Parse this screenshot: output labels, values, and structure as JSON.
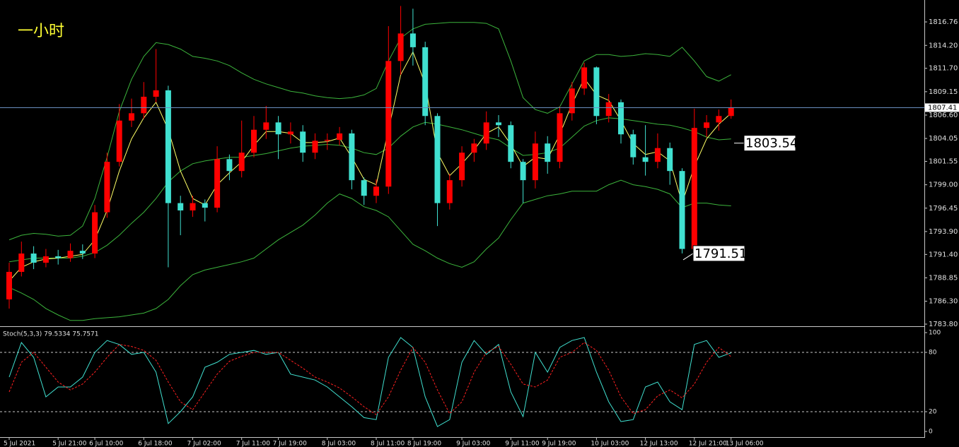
{
  "chart_data": [
    {
      "type": "candlestick",
      "title": "一小时",
      "categories": [
        "5 Jul 2021",
        null,
        null,
        null,
        "5 Jul 21:00",
        null,
        null,
        "6 Jul 10:00",
        null,
        null,
        null,
        "6 Jul 18:00",
        null,
        null,
        null,
        "7 Jul 02:00",
        null,
        null,
        null,
        "7 Jul 11:00",
        null,
        null,
        "7 Jul 19:00",
        null,
        null,
        null,
        "8 Jul 03:00",
        null,
        null,
        null,
        "8 Jul 11:00",
        null,
        null,
        "8 Jul 19:00",
        null,
        null,
        null,
        "9 Jul 03:00",
        null,
        null,
        null,
        "9 Jul 11:00",
        null,
        null,
        "9 Jul 19:00",
        null,
        null,
        null,
        "10 Jul 03:00",
        null,
        null,
        null,
        "12 Jul 13:00",
        null,
        null,
        null,
        "12 Jul 21:00",
        null,
        null,
        "13 Jul 06:00"
      ],
      "open": [
        1786.5,
        1789.5,
        1791.5,
        1790.5,
        1791.2,
        1791.0,
        1791.8,
        1791.5,
        1796.0,
        1801.5,
        1806.0,
        1806.8,
        1808.6,
        1809.3,
        1797.0,
        1796.2,
        1797.0,
        1796.5,
        1801.8,
        1800.5,
        1802.5,
        1805.0,
        1805.8,
        1804.5,
        1804.8,
        1802.5,
        1803.8,
        1803.9,
        1804.6,
        1799.5,
        1797.8,
        1798.8,
        1812.5,
        1815.5,
        1814.0,
        1806.5,
        1797.0,
        1799.5,
        1802.5,
        1803.5,
        1805.8,
        1805.5,
        1801.5,
        1799.5,
        1803.5,
        1801.5,
        1806.8,
        1809.5,
        1811.8,
        1806.5,
        1808.0,
        1804.5,
        1802.0,
        1801.5,
        1803.0,
        1800.5,
        1792.0,
        1805.2,
        1805.8,
        1806.5
      ],
      "high": [
        1790.5,
        1792.8,
        1792.3,
        1792.0,
        1791.9,
        1792.6,
        1792.5,
        1796.8,
        1802.5,
        1807.8,
        1808.4,
        1810.2,
        1813.8,
        1809.8,
        1797.8,
        1797.8,
        1797.4,
        1803.2,
        1802.3,
        1806.0,
        1806.5,
        1807.6,
        1806.5,
        1805.8,
        1805.5,
        1804.6,
        1804.6,
        1805.3,
        1805.0,
        1799.8,
        1799.6,
        1816.3,
        1818.5,
        1818.2,
        1814.6,
        1806.8,
        1800.2,
        1803.2,
        1804.0,
        1807.0,
        1806.6,
        1805.9,
        1801.8,
        1804.8,
        1804.3,
        1807.5,
        1810.2,
        1812.3,
        1811.9,
        1808.9,
        1808.3,
        1805.0,
        1805.5,
        1804.6,
        1803.6,
        1800.8,
        1807.3,
        1806.6,
        1807.2,
        1808.3
      ],
      "low": [
        1785.5,
        1789.0,
        1789.8,
        1790.0,
        1790.3,
        1790.6,
        1790.9,
        1791.0,
        1795.4,
        1801.0,
        1805.3,
        1806.2,
        1808.0,
        1790.0,
        1793.5,
        1795.5,
        1795.0,
        1796.0,
        1799.5,
        1799.8,
        1802.0,
        1804.0,
        1801.8,
        1803.5,
        1801.5,
        1801.8,
        1802.8,
        1803.3,
        1798.5,
        1796.8,
        1797.0,
        1798.0,
        1811.0,
        1812.0,
        1805.5,
        1794.5,
        1796.3,
        1798.8,
        1801.5,
        1802.8,
        1804.2,
        1800.8,
        1797.0,
        1798.6,
        1800.2,
        1800.8,
        1806.0,
        1808.8,
        1805.6,
        1805.8,
        1803.5,
        1801.2,
        1800.0,
        1800.8,
        1799.0,
        1791.51,
        1791.8,
        1804.2,
        1804.9,
        1806.2
      ],
      "close": [
        1789.5,
        1791.5,
        1790.5,
        1791.2,
        1791.0,
        1791.8,
        1791.5,
        1796.0,
        1801.5,
        1806.0,
        1806.8,
        1808.6,
        1809.3,
        1797.0,
        1796.2,
        1797.0,
        1796.5,
        1801.8,
        1800.5,
        1802.5,
        1805.0,
        1805.8,
        1804.5,
        1804.8,
        1802.5,
        1803.8,
        1803.9,
        1804.6,
        1799.5,
        1797.8,
        1798.8,
        1812.5,
        1815.5,
        1814.0,
        1806.5,
        1797.0,
        1799.5,
        1802.5,
        1803.5,
        1805.8,
        1805.5,
        1801.5,
        1799.5,
        1803.5,
        1801.5,
        1806.8,
        1809.5,
        1811.8,
        1806.5,
        1808.0,
        1804.5,
        1802.0,
        1801.5,
        1803.0,
        1800.5,
        1792.0,
        1805.2,
        1805.8,
        1806.5,
        1807.4
      ],
      "up_color": "#ff0000",
      "down_color": "#40e0d0",
      "lines": [
        {
          "color": "#3cb43c",
          "values": [
            1793.0,
            1793.5,
            1793.7,
            1793.6,
            1793.4,
            1793.5,
            1794.5,
            1797.5,
            1802.0,
            1807.0,
            1810.5,
            1813.0,
            1814.5,
            1814.3,
            1813.8,
            1813.0,
            1812.8,
            1812.5,
            1812.0,
            1811.2,
            1810.5,
            1810.0,
            1809.6,
            1809.2,
            1809.0,
            1808.7,
            1808.5,
            1808.4,
            1808.5,
            1808.8,
            1809.5,
            1812.5,
            1815.0,
            1816.0,
            1816.5,
            1816.6,
            1816.7,
            1816.7,
            1816.7,
            1816.6,
            1816.0,
            1812.5,
            1808.5,
            1807.2,
            1806.8,
            1807.5,
            1810.0,
            1812.5,
            1813.2,
            1813.2,
            1813.0,
            1813.1,
            1813.3,
            1813.2,
            1813.0,
            1814.0,
            1812.5,
            1810.8,
            1810.3,
            1811.0
          ]
        },
        {
          "color": "#3cb43c",
          "values": [
            1790.6,
            1790.8,
            1791.0,
            1791.0,
            1791.0,
            1791.0,
            1791.2,
            1791.6,
            1792.4,
            1793.5,
            1794.8,
            1796.0,
            1797.5,
            1799.3,
            1800.5,
            1801.3,
            1801.6,
            1801.8,
            1802.0,
            1802.0,
            1802.2,
            1802.4,
            1802.7,
            1803.0,
            1803.2,
            1803.3,
            1803.4,
            1803.3,
            1803.0,
            1802.5,
            1802.3,
            1803.0,
            1804.3,
            1805.3,
            1805.8,
            1805.6,
            1805.3,
            1805.0,
            1804.6,
            1804.2,
            1803.9,
            1803.0,
            1802.2,
            1802.3,
            1802.5,
            1803.0,
            1804.2,
            1805.4,
            1806.0,
            1806.3,
            1806.2,
            1806.0,
            1805.8,
            1805.6,
            1805.5,
            1805.2,
            1804.8,
            1804.2,
            1803.9,
            1804.0
          ]
        },
        {
          "color": "#3cb43c",
          "values": [
            1787.8,
            1787.2,
            1786.5,
            1785.5,
            1784.8,
            1784.2,
            1784.2,
            1784.4,
            1784.5,
            1784.6,
            1784.8,
            1785.0,
            1785.5,
            1786.5,
            1788.0,
            1789.2,
            1789.7,
            1790.0,
            1790.3,
            1790.6,
            1791.0,
            1792.0,
            1793.0,
            1793.8,
            1794.6,
            1795.7,
            1797.0,
            1798.0,
            1797.5,
            1796.6,
            1796.2,
            1795.5,
            1794.0,
            1792.5,
            1791.8,
            1791.0,
            1790.4,
            1790.0,
            1790.6,
            1792.0,
            1793.2,
            1795.2,
            1797.0,
            1797.4,
            1797.8,
            1798.0,
            1798.3,
            1798.3,
            1798.3,
            1799.0,
            1799.5,
            1799.0,
            1798.8,
            1798.5,
            1798.0,
            1796.5,
            1797.0,
            1797.0,
            1796.8,
            1796.7
          ]
        },
        {
          "color": "#ffff66",
          "values": [
            1788.5,
            1790.0,
            1790.6,
            1790.9,
            1791.0,
            1791.2,
            1791.4,
            1793.0,
            1796.2,
            1800.5,
            1804.0,
            1806.3,
            1808.0,
            1805.0,
            1800.5,
            1797.5,
            1796.8,
            1799.0,
            1800.3,
            1801.5,
            1803.3,
            1804.8,
            1804.8,
            1804.6,
            1803.6,
            1803.6,
            1803.7,
            1804.1,
            1802.0,
            1799.6,
            1799.0,
            1805.0,
            1811.0,
            1813.5,
            1810.0,
            1802.5,
            1800.0,
            1801.3,
            1802.8,
            1804.6,
            1805.3,
            1803.4,
            1801.0,
            1802.0,
            1801.8,
            1804.5,
            1807.8,
            1810.6,
            1808.8,
            1808.2,
            1806.0,
            1803.5,
            1802.3,
            1802.6,
            1801.6,
            1797.0,
            1801.0,
            1804.0,
            1805.6,
            1806.8
          ]
        }
      ],
      "ylim": [
        1783.57,
        1819.15
      ],
      "yticks": [
        {
          "value": 1816.76,
          "label": "1816.76"
        },
        {
          "value": 1814.2,
          "label": "1814.20"
        },
        {
          "value": 1811.7,
          "label": "1811.70"
        },
        {
          "value": 1809.15,
          "label": "1809.15"
        },
        {
          "value": 1806.6,
          "label": "1806.60"
        },
        {
          "value": 1804.05,
          "label": "1804.05"
        },
        {
          "value": 1801.55,
          "label": "1801.55"
        },
        {
          "value": 1799.0,
          "label": "1799.00"
        },
        {
          "value": 1796.45,
          "label": "1796.45"
        },
        {
          "value": 1793.9,
          "label": "1793.90"
        },
        {
          "value": 1791.4,
          "label": "1791.40"
        },
        {
          "value": 1788.85,
          "label": "1788.85"
        },
        {
          "value": 1786.3,
          "label": "1786.30"
        },
        {
          "value": 1783.8,
          "label": "1783.80"
        }
      ],
      "current_price": 1807.41,
      "current_price_color": "#6a8fc0",
      "annotations": [
        1803.54,
        1791.51
      ]
    },
    {
      "type": "stochastic",
      "label": "Stoch(5,3,3) 79.5334 75.7571",
      "lines": [
        {
          "color": "#40e0d0",
          "dashed": false,
          "values": [
            55,
            90,
            75,
            35,
            45,
            45,
            55,
            80,
            92,
            88,
            78,
            80,
            60,
            8,
            20,
            35,
            65,
            70,
            78,
            80,
            82,
            78,
            80,
            58,
            55,
            52,
            45,
            35,
            25,
            14,
            12,
            75,
            95,
            85,
            35,
            5,
            12,
            70,
            92,
            78,
            88,
            40,
            15,
            80,
            60,
            85,
            92,
            95,
            60,
            30,
            10,
            12,
            45,
            50,
            30,
            22,
            88,
            92,
            75,
            79.5334
          ]
        },
        {
          "color": "#ff2020",
          "dashed": true,
          "values": [
            40,
            70,
            80,
            65,
            50,
            42,
            48,
            60,
            75,
            88,
            86,
            82,
            72,
            50,
            30,
            22,
            40,
            58,
            71,
            76,
            80,
            80,
            80,
            72,
            64,
            55,
            50,
            44,
            35,
            25,
            17,
            35,
            62,
            85,
            70,
            42,
            18,
            30,
            60,
            80,
            86,
            68,
            48,
            45,
            52,
            75,
            80,
            90,
            82,
            62,
            35,
            18,
            22,
            36,
            42,
            34,
            48,
            70,
            85,
            75.7571
          ]
        }
      ],
      "ylim": [
        -5,
        104.3
      ],
      "yticks": [
        100,
        80,
        20,
        0
      ],
      "levels": [
        80,
        20
      ]
    }
  ]
}
